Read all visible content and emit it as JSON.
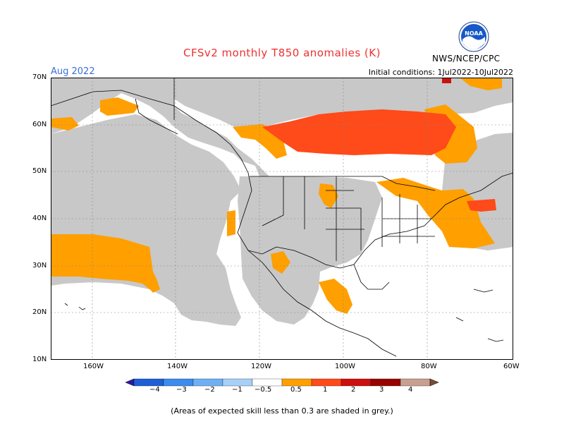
{
  "title": "CFSv2 monthly T850 anomalies (K)",
  "month": "Aug 2022",
  "initial_conditions": "Initial conditions: 1Jul2022-10Jul2022",
  "agency": "NWS/NCEP/CPC",
  "logo_text": "NOAA",
  "lat_labels": [
    "70N",
    "60N",
    "50N",
    "40N",
    "30N",
    "20N",
    "10N"
  ],
  "lon_labels": [
    "160W",
    "140W",
    "120W",
    "100W",
    "80W",
    "60W"
  ],
  "colorbar": {
    "labels": [
      "−4",
      "−3",
      "−2",
      "−1",
      "−0.5",
      "0.5",
      "1",
      "2",
      "3",
      "4"
    ],
    "colors": [
      "#2b1aa8",
      "#1e5fd6",
      "#3b8cee",
      "#6fb0f5",
      "#a6d0f8",
      "#ffffff",
      "#ff9f00",
      "#ff4a1a",
      "#cc1010",
      "#990000",
      "#c8a090",
      "#7a4a3a"
    ]
  },
  "legend_note": "(Areas of expected skill less than 0.3 are shaded in grey.)",
  "map_colors": {
    "grey": "#c8c8c8",
    "orange": "#ff9f00",
    "red": "#ff4a1a"
  }
}
